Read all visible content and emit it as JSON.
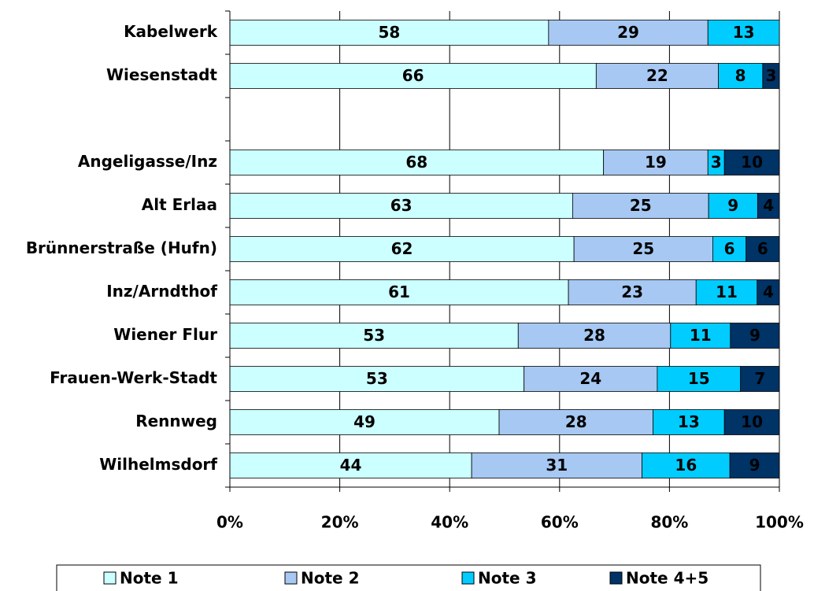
{
  "chart_data": {
    "type": "stacked_bar_horizontal",
    "stack": "percent",
    "categories": [
      "Kabelwerk",
      "Wiesenstadt",
      null,
      "Angeligasse/Inz",
      "Alt Erlaa",
      "Brünnerstraße (Hufn)",
      "Inz/Arndthof",
      "Wiener Flur",
      "Frauen-Werk-Stadt",
      "Rennweg",
      "Wilhelmsdorf"
    ],
    "series": [
      {
        "name": "Note 1",
        "color": "#ccffff",
        "label_color": "#000000",
        "values": [
          58,
          66,
          null,
          68,
          63,
          62,
          61,
          53,
          53,
          49,
          44
        ]
      },
      {
        "name": "Note 2",
        "color": "#a6c8f2",
        "label_color": "#000000",
        "values": [
          29,
          22,
          null,
          19,
          25,
          25,
          23,
          28,
          24,
          28,
          31
        ]
      },
      {
        "name": "Note 3",
        "color": "#00ccff",
        "label_color": "#ffffff",
        "values": [
          13,
          8,
          null,
          3,
          9,
          6,
          11,
          11,
          15,
          13,
          16
        ]
      },
      {
        "name": "Note 4+5",
        "color": "#003366",
        "label_color": "#ffffff",
        "values": [
          null,
          3,
          null,
          10,
          4,
          6,
          4,
          9,
          7,
          10,
          9
        ]
      }
    ],
    "xlim": [
      0,
      100
    ],
    "xticks": [
      {
        "value": 0,
        "label": "0%"
      },
      {
        "value": 20,
        "label": "20%"
      },
      {
        "value": 40,
        "label": "40%"
      },
      {
        "value": 60,
        "label": "60%"
      },
      {
        "value": 80,
        "label": "80%"
      },
      {
        "value": 100,
        "label": "100%"
      }
    ],
    "grid": true,
    "legend": "bottom"
  }
}
